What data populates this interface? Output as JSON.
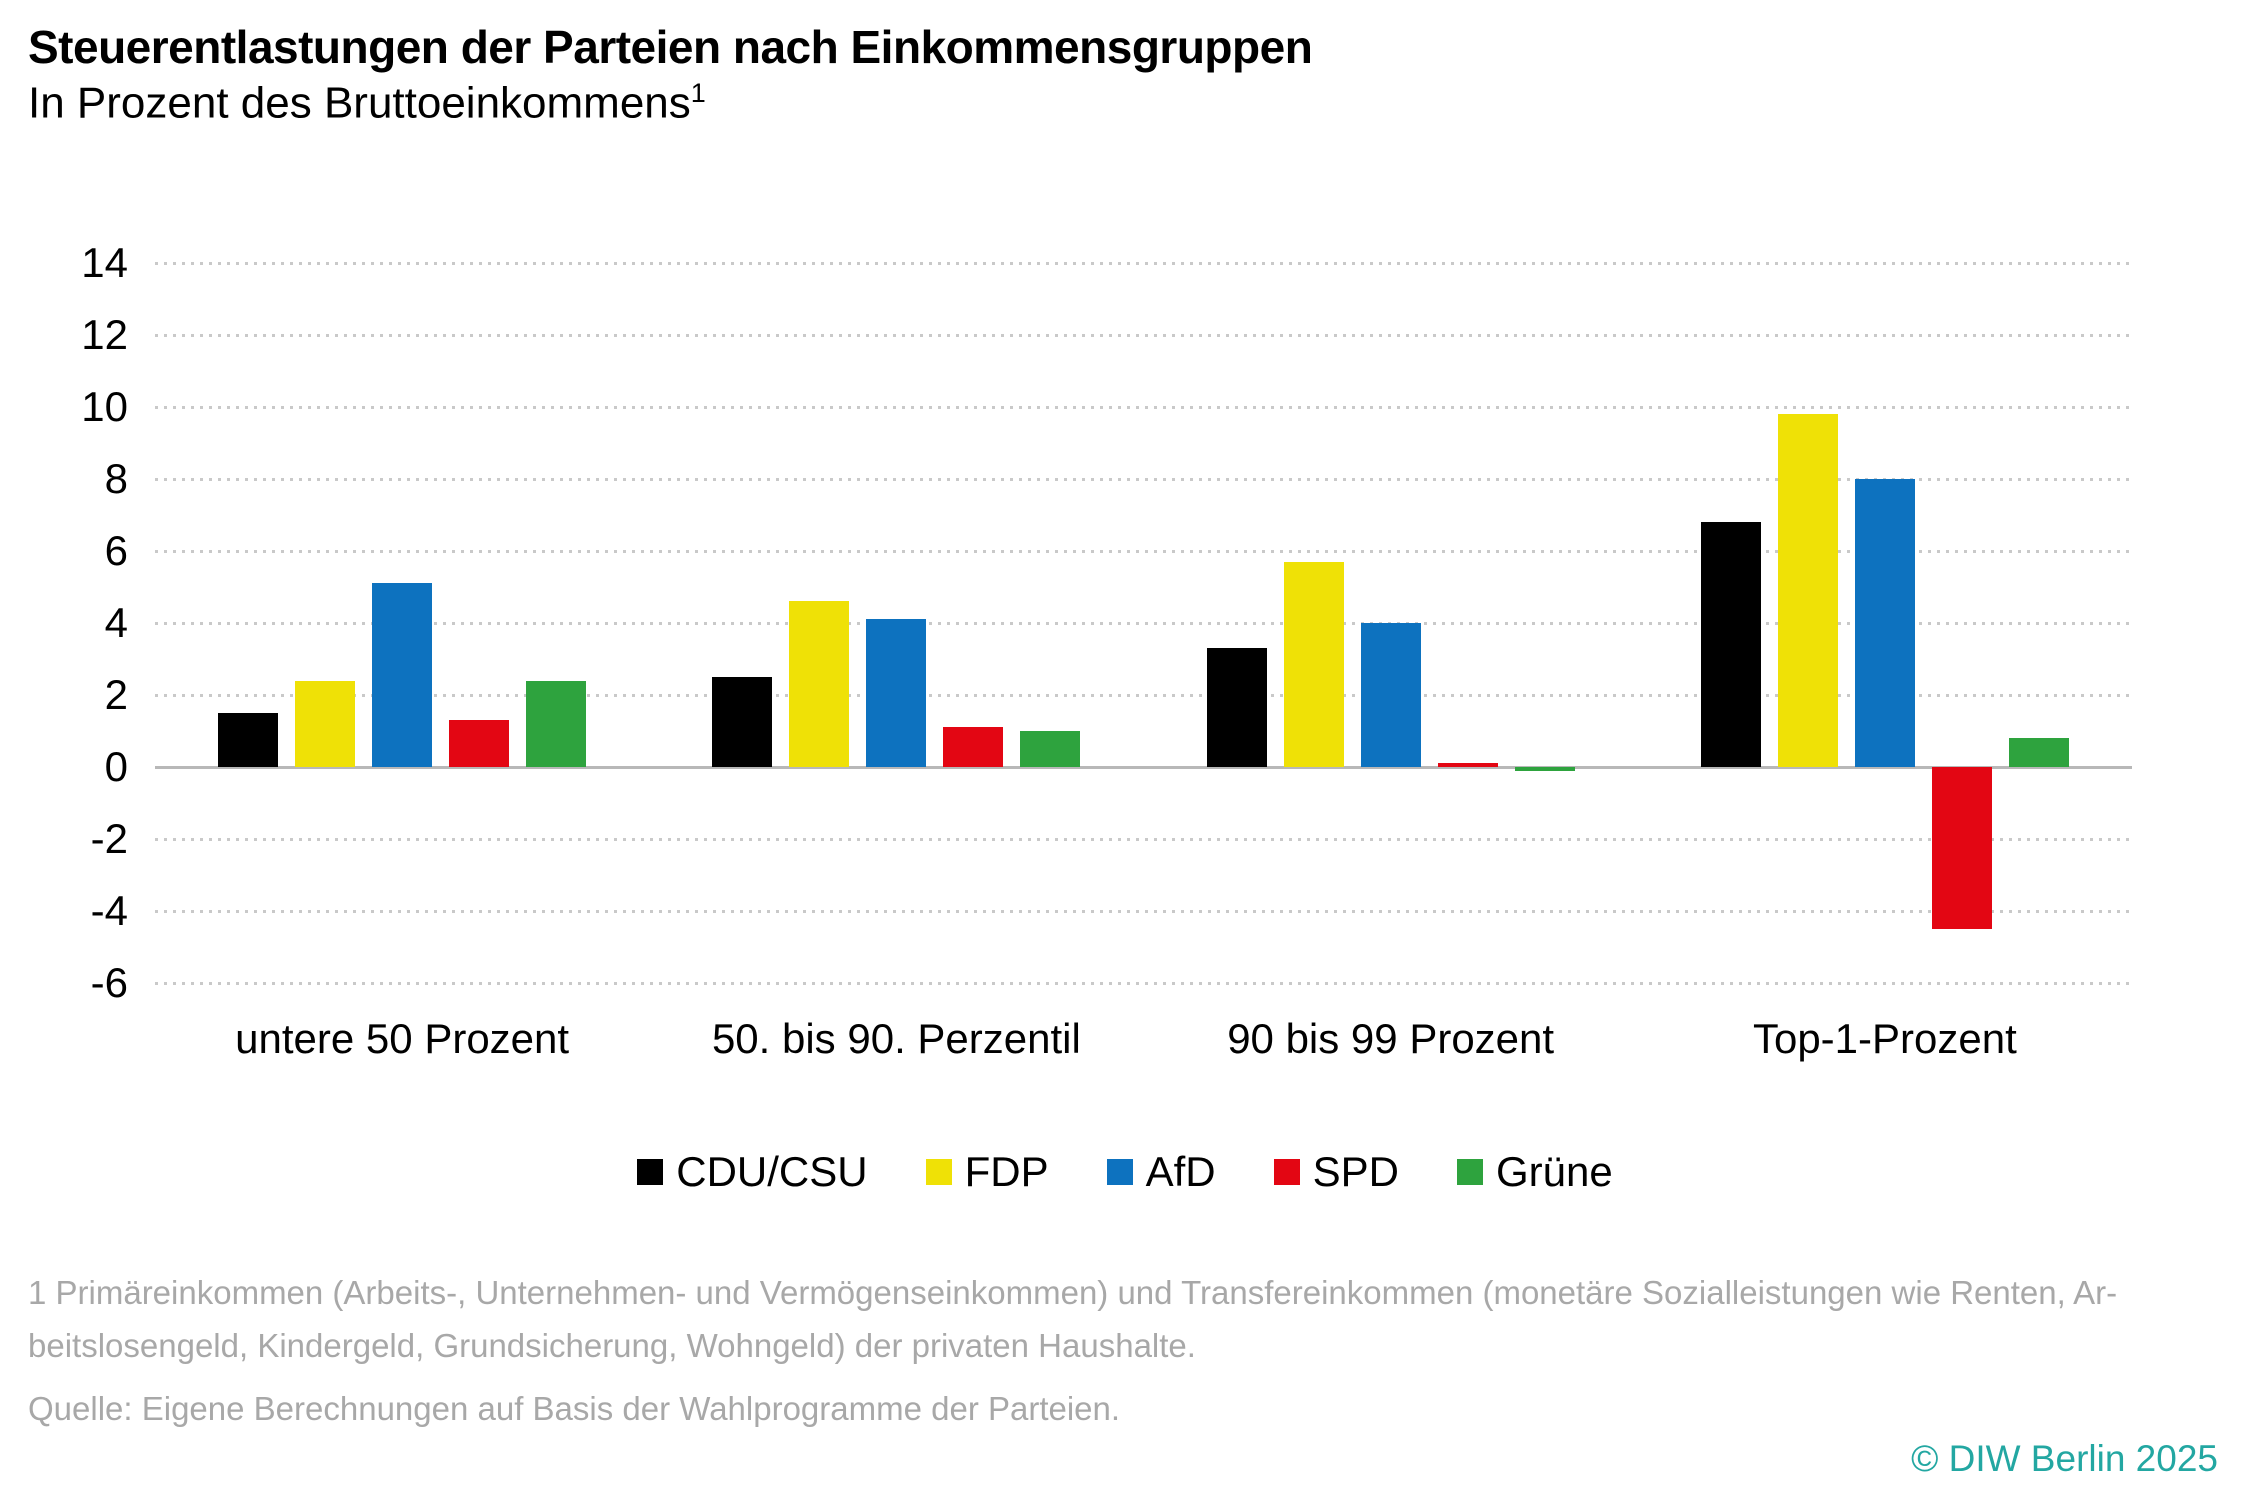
{
  "header": {
    "title": "Steuerentlastungen der Parteien nach Einkommensgruppen",
    "subtitle": "In Prozent des Bruttoeinkommens",
    "subtitle_superscript": "1"
  },
  "chart_data": {
    "type": "bar",
    "categories": [
      "untere 50 Prozent",
      "50. bis 90. Perzentil",
      "90 bis 99 Prozent",
      "Top-1-Prozent"
    ],
    "series": [
      {
        "name": "CDU/CSU",
        "color": "#000000",
        "values": [
          1.5,
          2.5,
          3.3,
          6.8
        ]
      },
      {
        "name": "FDP",
        "color": "#efe106",
        "values": [
          2.4,
          4.6,
          5.7,
          9.8
        ]
      },
      {
        "name": "AfD",
        "color": "#0d72bf",
        "values": [
          5.1,
          4.1,
          4.0,
          8.0
        ]
      },
      {
        "name": "SPD",
        "color": "#e30613",
        "values": [
          1.3,
          1.1,
          0.1,
          -4.5
        ]
      },
      {
        "name": "Grüne",
        "color": "#2ea33e",
        "values": [
          2.4,
          1.0,
          -0.1,
          0.8
        ]
      }
    ],
    "ylim": [
      -6,
      14
    ],
    "yticks": [
      14,
      12,
      10,
      8,
      6,
      4,
      2,
      0,
      -2,
      -4,
      -6
    ],
    "grid": "horizontal dotted, solid zero line",
    "legend_position": "bottom",
    "xlabel": "",
    "ylabel": ""
  },
  "footnote": {
    "line1": "1 Primäreinkommen (Arbeits-, Unternehmen- und Vermögenseinkommen) und Transfereinkommen (monetäre Sozialleistungen wie Renten, Ar-",
    "line2": "beitslosengeld, Kindergeld, Grundsicherung, Wohngeld) der privaten Haushalte."
  },
  "source": "Quelle: Eigene Berechnungen auf Basis der Wahlprogramme der Parteien.",
  "copyright": "© DIW Berlin 2025"
}
